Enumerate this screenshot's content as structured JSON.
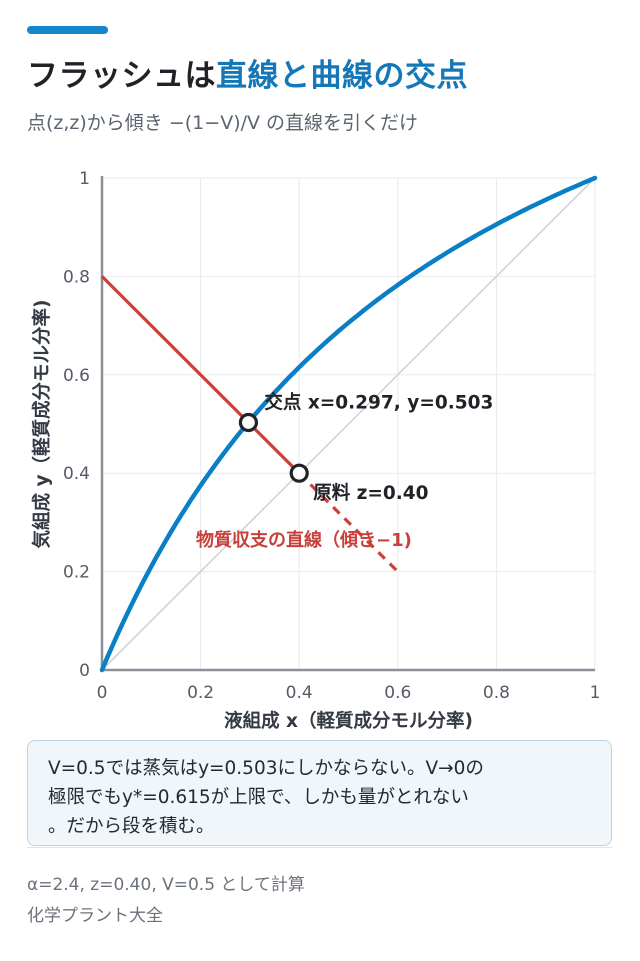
{
  "header": {
    "title_plain": "フラッシュは",
    "title_highlight": "直線と曲線の交点",
    "subtitle": "点(z,z)から傾き −(1−V)/V の直線を引くだけ"
  },
  "colors": {
    "accent": "#1287c9",
    "equilibrium_curve": "#0a7fc6",
    "material_balance_line": "#c9403a",
    "diagonal": "#cfd3d7",
    "axis": "#8a9098"
  },
  "chart_data": {
    "type": "line",
    "xlabel": "液組成 x（軽質成分モル分率)",
    "ylabel": "気組成 y（軽質成分モル分率)",
    "xlim": [
      0,
      1
    ],
    "ylim": [
      0,
      1
    ],
    "x_ticks": [
      "0",
      "0.2",
      "0.4",
      "0.6",
      "0.8",
      "1"
    ],
    "y_ticks": [
      "0",
      "0.2",
      "0.4",
      "0.6",
      "0.8",
      "1"
    ],
    "grid": true,
    "series": [
      {
        "kind": "equilibrium-curve",
        "relative_volatility": 2.4,
        "color": "#0a7fc6",
        "x": [
          0,
          0.05,
          0.1,
          0.15,
          0.2,
          0.25,
          0.3,
          0.35,
          0.4,
          0.45,
          0.5,
          0.55,
          0.6,
          0.65,
          0.7,
          0.75,
          0.8,
          0.85,
          0.9,
          0.95,
          1
        ],
        "y": [
          0,
          0.112,
          0.211,
          0.298,
          0.375,
          0.444,
          0.507,
          0.564,
          0.615,
          0.663,
          0.706,
          0.746,
          0.783,
          0.817,
          0.848,
          0.878,
          0.906,
          0.932,
          0.956,
          0.979,
          1
        ]
      },
      {
        "kind": "diagonal",
        "color": "#cfd3d7",
        "x": [
          0,
          1
        ],
        "y": [
          0,
          1
        ]
      },
      {
        "kind": "material-balance-line",
        "name": "物質収支の直線（傾き−1)",
        "color": "#c9403a",
        "solid_x": [
          0,
          0.4
        ],
        "solid_y": [
          0.8,
          0.4
        ],
        "dashed_x": [
          0.4,
          0.6
        ],
        "dashed_y": [
          0.4,
          0.2
        ]
      }
    ],
    "points": [
      {
        "kind": "intersection",
        "x": 0.297,
        "y": 0.503,
        "label": "交点 x=0.297, y=0.503"
      },
      {
        "kind": "feed",
        "x": 0.4,
        "y": 0.4,
        "label": "原料 z=0.40"
      }
    ]
  },
  "note": {
    "line1": "V=0.5では蒸気はy=0.503にしかならない。V→0の",
    "line2": "極限でもy*=0.615が上限で、しかも量がとれない",
    "line3": "。だから段を積む。"
  },
  "footer": {
    "params": "α=2.4, z=0.40, V=0.5 として計算",
    "source": "化学プラント大全"
  }
}
